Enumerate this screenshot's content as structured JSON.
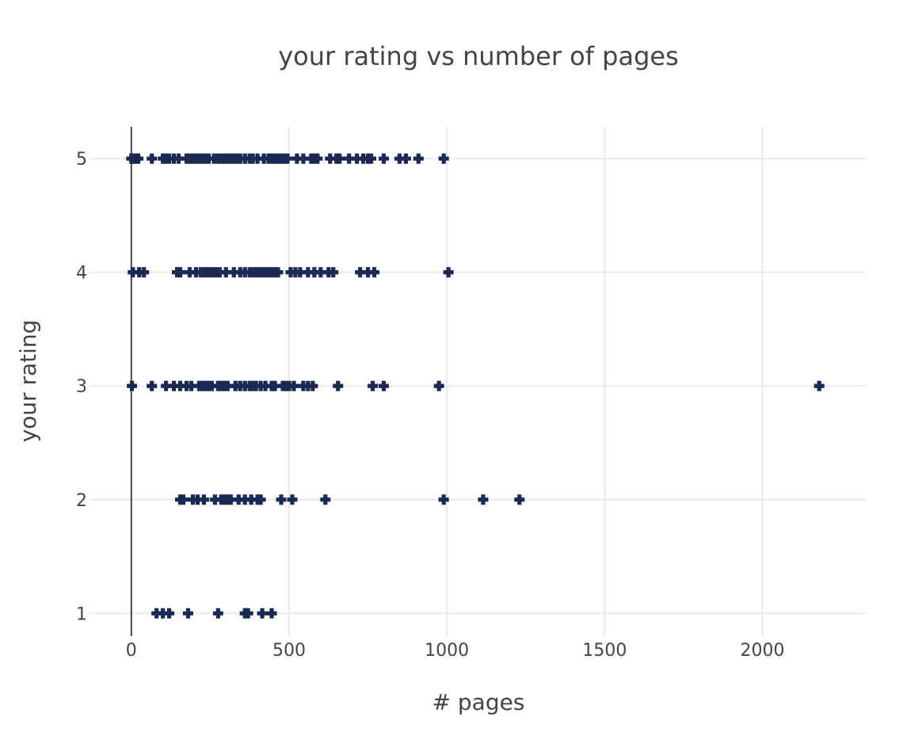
{
  "chart_data": {
    "type": "scatter",
    "title": "your rating vs number of pages",
    "xlabel": "# pages",
    "ylabel": "your rating",
    "xlim": [
      -130,
      2330
    ],
    "ylim": [
      0.8,
      5.28
    ],
    "x_ticks": [
      0,
      500,
      1000,
      1500,
      2000
    ],
    "x_tick_labels": [
      "0",
      "500",
      "1000",
      "1500",
      "2000"
    ],
    "y_ticks": [
      1,
      2,
      3,
      4,
      5
    ],
    "y_tick_labels": [
      "1",
      "2",
      "3",
      "4",
      "5"
    ],
    "grid": true,
    "legend": "none",
    "marker": "cross",
    "colors": {
      "marker": "#1b2a55",
      "grid": "#e9e9e9",
      "zero_line": "#444444",
      "text": "#444444"
    },
    "series": [
      {
        "points": [
          {
            "x": 0,
            "y": 5
          },
          {
            "x": 8,
            "y": 5
          },
          {
            "x": 15,
            "y": 5
          },
          {
            "x": 22,
            "y": 5
          },
          {
            "x": 65,
            "y": 5
          },
          {
            "x": 100,
            "y": 5
          },
          {
            "x": 110,
            "y": 5
          },
          {
            "x": 120,
            "y": 5
          },
          {
            "x": 135,
            "y": 5
          },
          {
            "x": 150,
            "y": 5
          },
          {
            "x": 175,
            "y": 5
          },
          {
            "x": 185,
            "y": 5
          },
          {
            "x": 195,
            "y": 5
          },
          {
            "x": 205,
            "y": 5
          },
          {
            "x": 215,
            "y": 5
          },
          {
            "x": 225,
            "y": 5
          },
          {
            "x": 235,
            "y": 5
          },
          {
            "x": 245,
            "y": 5
          },
          {
            "x": 262,
            "y": 5
          },
          {
            "x": 275,
            "y": 5
          },
          {
            "x": 285,
            "y": 5
          },
          {
            "x": 295,
            "y": 5
          },
          {
            "x": 305,
            "y": 5
          },
          {
            "x": 315,
            "y": 5
          },
          {
            "x": 325,
            "y": 5
          },
          {
            "x": 335,
            "y": 5
          },
          {
            "x": 345,
            "y": 5
          },
          {
            "x": 360,
            "y": 5
          },
          {
            "x": 375,
            "y": 5
          },
          {
            "x": 385,
            "y": 5
          },
          {
            "x": 400,
            "y": 5
          },
          {
            "x": 420,
            "y": 5
          },
          {
            "x": 435,
            "y": 5
          },
          {
            "x": 445,
            "y": 5
          },
          {
            "x": 455,
            "y": 5
          },
          {
            "x": 465,
            "y": 5
          },
          {
            "x": 475,
            "y": 5
          },
          {
            "x": 485,
            "y": 5
          },
          {
            "x": 495,
            "y": 5
          },
          {
            "x": 525,
            "y": 5
          },
          {
            "x": 545,
            "y": 5
          },
          {
            "x": 570,
            "y": 5
          },
          {
            "x": 580,
            "y": 5
          },
          {
            "x": 590,
            "y": 5
          },
          {
            "x": 630,
            "y": 5
          },
          {
            "x": 650,
            "y": 5
          },
          {
            "x": 660,
            "y": 5
          },
          {
            "x": 690,
            "y": 5
          },
          {
            "x": 715,
            "y": 5
          },
          {
            "x": 735,
            "y": 5
          },
          {
            "x": 750,
            "y": 5
          },
          {
            "x": 760,
            "y": 5
          },
          {
            "x": 800,
            "y": 5
          },
          {
            "x": 850,
            "y": 5
          },
          {
            "x": 870,
            "y": 5
          },
          {
            "x": 910,
            "y": 5
          },
          {
            "x": 990,
            "y": 5
          },
          {
            "x": 5,
            "y": 4
          },
          {
            "x": 25,
            "y": 4
          },
          {
            "x": 40,
            "y": 4
          },
          {
            "x": 145,
            "y": 4
          },
          {
            "x": 155,
            "y": 4
          },
          {
            "x": 185,
            "y": 4
          },
          {
            "x": 205,
            "y": 4
          },
          {
            "x": 220,
            "y": 4
          },
          {
            "x": 232,
            "y": 4
          },
          {
            "x": 240,
            "y": 4
          },
          {
            "x": 250,
            "y": 4
          },
          {
            "x": 260,
            "y": 4
          },
          {
            "x": 270,
            "y": 4
          },
          {
            "x": 280,
            "y": 4
          },
          {
            "x": 300,
            "y": 4
          },
          {
            "x": 325,
            "y": 4
          },
          {
            "x": 345,
            "y": 4
          },
          {
            "x": 360,
            "y": 4
          },
          {
            "x": 375,
            "y": 4
          },
          {
            "x": 385,
            "y": 4
          },
          {
            "x": 395,
            "y": 4
          },
          {
            "x": 405,
            "y": 4
          },
          {
            "x": 415,
            "y": 4
          },
          {
            "x": 425,
            "y": 4
          },
          {
            "x": 435,
            "y": 4
          },
          {
            "x": 445,
            "y": 4
          },
          {
            "x": 455,
            "y": 4
          },
          {
            "x": 465,
            "y": 4
          },
          {
            "x": 505,
            "y": 4
          },
          {
            "x": 520,
            "y": 4
          },
          {
            "x": 535,
            "y": 4
          },
          {
            "x": 560,
            "y": 4
          },
          {
            "x": 580,
            "y": 4
          },
          {
            "x": 600,
            "y": 4
          },
          {
            "x": 625,
            "y": 4
          },
          {
            "x": 640,
            "y": 4
          },
          {
            "x": 725,
            "y": 4
          },
          {
            "x": 750,
            "y": 4
          },
          {
            "x": 770,
            "y": 4
          },
          {
            "x": 1005,
            "y": 4
          },
          {
            "x": 2,
            "y": 3
          },
          {
            "x": 65,
            "y": 3
          },
          {
            "x": 110,
            "y": 3
          },
          {
            "x": 135,
            "y": 3
          },
          {
            "x": 155,
            "y": 3
          },
          {
            "x": 175,
            "y": 3
          },
          {
            "x": 190,
            "y": 3
          },
          {
            "x": 215,
            "y": 3
          },
          {
            "x": 225,
            "y": 3
          },
          {
            "x": 235,
            "y": 3
          },
          {
            "x": 245,
            "y": 3
          },
          {
            "x": 255,
            "y": 3
          },
          {
            "x": 275,
            "y": 3
          },
          {
            "x": 285,
            "y": 3
          },
          {
            "x": 295,
            "y": 3
          },
          {
            "x": 305,
            "y": 3
          },
          {
            "x": 330,
            "y": 3
          },
          {
            "x": 345,
            "y": 3
          },
          {
            "x": 360,
            "y": 3
          },
          {
            "x": 375,
            "y": 3
          },
          {
            "x": 385,
            "y": 3
          },
          {
            "x": 395,
            "y": 3
          },
          {
            "x": 410,
            "y": 3
          },
          {
            "x": 425,
            "y": 3
          },
          {
            "x": 445,
            "y": 3
          },
          {
            "x": 455,
            "y": 3
          },
          {
            "x": 480,
            "y": 3
          },
          {
            "x": 490,
            "y": 3
          },
          {
            "x": 500,
            "y": 3
          },
          {
            "x": 515,
            "y": 3
          },
          {
            "x": 545,
            "y": 3
          },
          {
            "x": 560,
            "y": 3
          },
          {
            "x": 575,
            "y": 3
          },
          {
            "x": 655,
            "y": 3
          },
          {
            "x": 765,
            "y": 3
          },
          {
            "x": 800,
            "y": 3
          },
          {
            "x": 975,
            "y": 3
          },
          {
            "x": 2180,
            "y": 3
          },
          {
            "x": 155,
            "y": 2
          },
          {
            "x": 165,
            "y": 2
          },
          {
            "x": 195,
            "y": 2
          },
          {
            "x": 210,
            "y": 2
          },
          {
            "x": 230,
            "y": 2
          },
          {
            "x": 265,
            "y": 2
          },
          {
            "x": 285,
            "y": 2
          },
          {
            "x": 295,
            "y": 2
          },
          {
            "x": 305,
            "y": 2
          },
          {
            "x": 315,
            "y": 2
          },
          {
            "x": 340,
            "y": 2
          },
          {
            "x": 360,
            "y": 2
          },
          {
            "x": 380,
            "y": 2
          },
          {
            "x": 400,
            "y": 2
          },
          {
            "x": 410,
            "y": 2
          },
          {
            "x": 475,
            "y": 2
          },
          {
            "x": 510,
            "y": 2
          },
          {
            "x": 615,
            "y": 2
          },
          {
            "x": 990,
            "y": 2
          },
          {
            "x": 1115,
            "y": 2
          },
          {
            "x": 1230,
            "y": 2
          },
          {
            "x": 80,
            "y": 1
          },
          {
            "x": 100,
            "y": 1
          },
          {
            "x": 120,
            "y": 1
          },
          {
            "x": 180,
            "y": 1
          },
          {
            "x": 275,
            "y": 1
          },
          {
            "x": 360,
            "y": 1
          },
          {
            "x": 370,
            "y": 1
          },
          {
            "x": 415,
            "y": 1
          },
          {
            "x": 445,
            "y": 1
          }
        ]
      }
    ]
  }
}
